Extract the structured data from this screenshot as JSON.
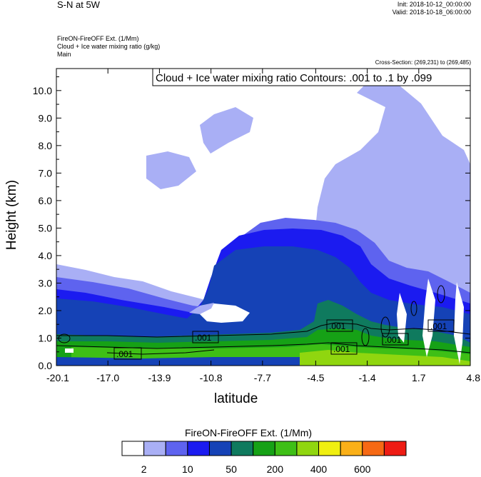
{
  "header": {
    "title": "S-N at 5W",
    "init": "Init: 2018-10-12_00:00:00",
    "valid": "Valid: 2018-10-18_06:00:00",
    "field1": "FireON-FireOFF Ext.   (1/Mm)",
    "field2": "Cloud + Ice water mixing ratio   (g/kg)",
    "field3": "Main",
    "cross_section": "Cross-Section: (269,231) to (269,485)"
  },
  "chart_data": {
    "type": "heatmap",
    "title": "Cloud + Ice water mixing ratio Contours: .001 to .1 by .099",
    "xlabel": "latitude",
    "ylabel": "Height (km)",
    "x_ticks": [
      "-20.1",
      "-17.0",
      "-13.9",
      "-10.8",
      "-7.7",
      "-4.5",
      "-1.4",
      "1.7",
      "4.8"
    ],
    "y_ticks": [
      "0.0",
      "1.0",
      "2.0",
      "3.0",
      "4.0",
      "5.0",
      "6.0",
      "7.0",
      "8.0",
      "9.0",
      "10.0"
    ],
    "xlim": [
      -20.1,
      4.8
    ],
    "ylim": [
      0.0,
      10.8
    ],
    "grid": false,
    "contour_labels": [
      ".001",
      ".001",
      ".001",
      ".001",
      ".001",
      ".001"
    ],
    "colorbar": {
      "title": "FireON-FireOFF Ext.  (1/Mm)",
      "colors": [
        "#ffffff",
        "#a9aff5",
        "#5e63ef",
        "#1b1bf0",
        "#1542b6",
        "#0f7a5e",
        "#16a116",
        "#3ebf16",
        "#90d60f",
        "#f0ef10",
        "#fab018",
        "#f66914",
        "#ee1c14"
      ],
      "labels": [
        "2",
        "10",
        "50",
        "200",
        "400",
        "600"
      ]
    }
  }
}
